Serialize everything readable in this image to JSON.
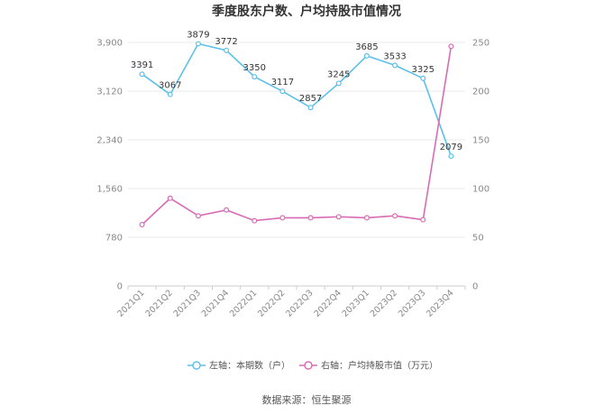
{
  "chart_data": {
    "type": "line",
    "title": "季度股东户数、户均持股市值情况",
    "categories": [
      "2021Q1",
      "2021Q2",
      "2021Q3",
      "2021Q4",
      "2022Q1",
      "2022Q2",
      "2022Q3",
      "2022Q4",
      "2023Q1",
      "2023Q2",
      "2023Q3",
      "2023Q4"
    ],
    "left_axis": {
      "ticks": [
        "0",
        "780",
        "1,560",
        "2,340",
        "3,120",
        "3,900"
      ],
      "ylim": [
        0,
        3900
      ]
    },
    "right_axis": {
      "ticks": [
        "0",
        "50",
        "100",
        "150",
        "200",
        "250"
      ],
      "ylim": [
        0,
        250
      ]
    },
    "series": [
      {
        "name": "左轴：本期数（户）",
        "axis": "left",
        "color": "#5bc0eb",
        "values": [
          3391,
          3067,
          3879,
          3772,
          3350,
          3117,
          2857,
          3245,
          3685,
          3533,
          3325,
          2079
        ],
        "labels": [
          "3391",
          "3067",
          "3879",
          "3772",
          "3350",
          "3117",
          "2857",
          "3245",
          "3685",
          "3533",
          "3325",
          "2079"
        ]
      },
      {
        "name": "右轴：户均持股市值（万元）",
        "axis": "right",
        "color": "#d96bb5",
        "values": [
          63,
          90,
          72,
          78,
          67,
          70,
          70,
          71,
          70,
          72,
          68,
          246
        ]
      }
    ],
    "grid": true,
    "legend_position": "bottom"
  },
  "footer": {
    "source": "数据来源：恒生聚源"
  }
}
